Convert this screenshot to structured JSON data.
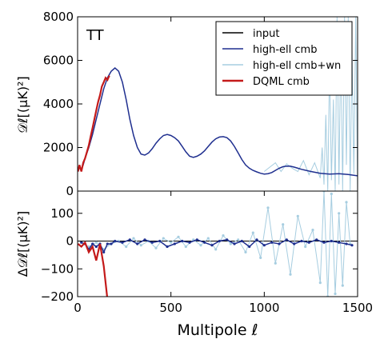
{
  "chart_data": [
    {
      "type": "line",
      "panel": "top",
      "annotation": "TT",
      "ylabel": "𝒟ℓ[(μK)²]",
      "xlim": [
        0,
        1500
      ],
      "ylim": [
        0,
        8000
      ],
      "yticks": [
        "0",
        "2000",
        "4000",
        "6000",
        "8000"
      ],
      "legend_placement": "top-right",
      "series": [
        {
          "name": "input",
          "color": "#000000",
          "x": [],
          "y": []
        },
        {
          "name": "high-ell cmb",
          "color": "#1f2f8f",
          "x": [
            2,
            10,
            20,
            30,
            40,
            60,
            80,
            100,
            120,
            140,
            160,
            180,
            200,
            220,
            240,
            260,
            280,
            300,
            320,
            340,
            360,
            380,
            400,
            420,
            440,
            460,
            480,
            500,
            520,
            540,
            560,
            580,
            600,
            620,
            640,
            660,
            680,
            700,
            720,
            740,
            760,
            780,
            800,
            820,
            840,
            860,
            880,
            900,
            920,
            940,
            960,
            980,
            1000,
            1020,
            1040,
            1060,
            1080,
            1100,
            1120,
            1140,
            1160,
            1180,
            1200,
            1250,
            1300,
            1350,
            1400,
            1450,
            1500
          ],
          "y": [
            900,
            1100,
            1000,
            1200,
            1500,
            2000,
            2600,
            3300,
            4000,
            4700,
            5200,
            5500,
            5650,
            5500,
            5000,
            4200,
            3300,
            2550,
            2000,
            1700,
            1650,
            1750,
            1950,
            2200,
            2400,
            2550,
            2600,
            2550,
            2450,
            2300,
            2050,
            1800,
            1600,
            1550,
            1600,
            1700,
            1850,
            2050,
            2250,
            2400,
            2480,
            2500,
            2450,
            2300,
            2050,
            1750,
            1450,
            1200,
            1050,
            950,
            880,
            820,
            780,
            800,
            850,
            950,
            1050,
            1120,
            1150,
            1140,
            1100,
            1050,
            1000,
            900,
            820,
            780,
            800,
            760,
            700
          ]
        },
        {
          "name": "high-ell cmb+wn",
          "color": "#a6cde0",
          "x": [
            1000,
            1030,
            1060,
            1090,
            1120,
            1150,
            1180,
            1210,
            1240,
            1270,
            1300,
            1310,
            1320,
            1330,
            1340,
            1350,
            1360,
            1370,
            1380,
            1390,
            1400,
            1410,
            1420,
            1430,
            1440,
            1450,
            1460,
            1470,
            1480,
            1490,
            1500
          ],
          "y": [
            900,
            1100,
            1300,
            900,
            1250,
            1050,
            900,
            1400,
            750,
            1300,
            600,
            2000,
            300,
            3500,
            0,
            6000,
            500,
            4200,
            0,
            8000,
            300,
            7000,
            0,
            8000,
            1200,
            8000,
            0,
            6500,
            800,
            8000,
            0
          ]
        },
        {
          "name": "DQML cmb",
          "color": "#c41a1a",
          "x": [
            2,
            10,
            20,
            30,
            40,
            50,
            60,
            70,
            80,
            90,
            100,
            110,
            120,
            130,
            140,
            150,
            160,
            170
          ],
          "y": [
            900,
            1200,
            900,
            1300,
            1500,
            1800,
            2100,
            2500,
            2900,
            3300,
            3700,
            4100,
            4400,
            4800,
            5000,
            5200,
            5100,
            5300
          ]
        }
      ]
    },
    {
      "type": "line",
      "panel": "bottom",
      "xlabel": "Multipole ℓ",
      "ylabel": "Δ𝒟ℓ[(μK)²]",
      "xlim": [
        0,
        1500
      ],
      "ylim": [
        -200,
        180
      ],
      "xticks": [
        "0",
        "500",
        "1000",
        "1500"
      ],
      "yticks": [
        "−200",
        "−100",
        "0",
        "100"
      ],
      "series": [
        {
          "name": "high-ell cmb",
          "color": "#1f2f8f",
          "x": [
            20,
            40,
            60,
            80,
            100,
            120,
            140,
            160,
            180,
            200,
            240,
            280,
            320,
            360,
            400,
            440,
            480,
            520,
            560,
            600,
            640,
            680,
            720,
            760,
            800,
            840,
            880,
            920,
            960,
            1000,
            1040,
            1080,
            1120,
            1160,
            1200,
            1240,
            1280,
            1320,
            1360,
            1400,
            1440,
            1470
          ],
          "y": [
            -5,
            -10,
            -30,
            -10,
            -20,
            -10,
            -40,
            -10,
            -10,
            0,
            -5,
            5,
            -10,
            5,
            -5,
            0,
            -20,
            -10,
            0,
            -5,
            5,
            -5,
            -15,
            0,
            5,
            -10,
            0,
            -20,
            5,
            -15,
            -5,
            -10,
            5,
            -10,
            0,
            -5,
            5,
            -5,
            0,
            -5,
            -10,
            -15
          ]
        },
        {
          "name": "high-ell cmb+wn",
          "color": "#a6cde0",
          "x": [
            20,
            60,
            100,
            140,
            180,
            220,
            260,
            300,
            340,
            380,
            420,
            460,
            500,
            540,
            580,
            620,
            660,
            700,
            740,
            780,
            820,
            860,
            900,
            940,
            980,
            1020,
            1060,
            1100,
            1140,
            1180,
            1220,
            1260,
            1300,
            1320,
            1340,
            1360,
            1380,
            1400,
            1420,
            1440,
            1460
          ],
          "y": [
            -5,
            -20,
            -5,
            -30,
            -10,
            0,
            -20,
            10,
            -15,
            0,
            -25,
            10,
            -5,
            15,
            -20,
            5,
            -15,
            10,
            -30,
            20,
            -10,
            5,
            -40,
            30,
            -60,
            120,
            -80,
            60,
            -120,
            90,
            -20,
            40,
            -150,
            180,
            -200,
            170,
            -190,
            100,
            -160,
            140,
            -10
          ]
        },
        {
          "name": "DQML cmb",
          "color": "#c41a1a",
          "x": [
            2,
            20,
            40,
            60,
            80,
            100,
            120,
            140,
            160
          ],
          "y": [
            -10,
            -20,
            -5,
            -40,
            -20,
            -70,
            -10,
            -90,
            -210
          ]
        }
      ]
    }
  ]
}
